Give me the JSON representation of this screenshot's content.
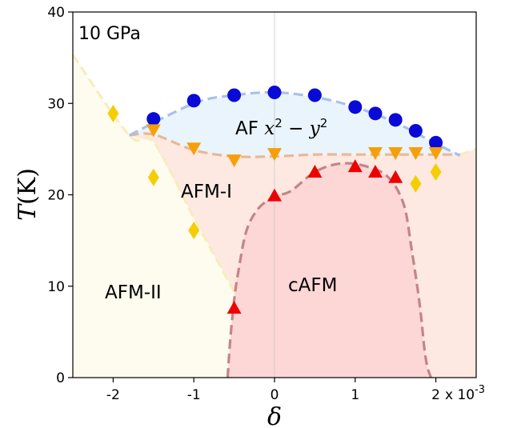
{
  "chart_data": {
    "type": "scatter",
    "panel_label": "10 GPa",
    "xlabel": "δ",
    "ylabel_main": "T",
    "ylabel_unit": "(K)",
    "x_multiplier_label": "x 10",
    "x_multiplier_exp": "-3",
    "xlim": [
      -2.5,
      2.5
    ],
    "ylim": [
      0,
      40
    ],
    "xticks": [
      -2,
      -1,
      0,
      1,
      2
    ],
    "yticks": [
      0,
      10,
      20,
      30,
      40
    ],
    "xtick_labels": [
      "-2",
      "-1",
      "0",
      "1",
      "2"
    ],
    "ytick_labels": [
      "0",
      "10",
      "20",
      "30",
      "40"
    ],
    "vertical_reference_line_x": 0,
    "regions": {
      "afx2y2": {
        "label_prefix": "AF",
        "label_math": "x",
        "label_minus": " − ",
        "label_math2": "y",
        "exp": "2"
      },
      "afm1": {
        "label": "AFM-I"
      },
      "afm2": {
        "label": "AFM-II"
      },
      "cafm": {
        "label": "cAFM"
      }
    },
    "colors": {
      "blue_marker": "#0a0ad6",
      "orange_marker": "#f5a00a",
      "red_marker": "#ee0000",
      "yellow_marker": "#f5cd05",
      "afx2y2_fill": "#eaf4fc",
      "afm1_fill": "#fde9e2",
      "afm2_fill": "#fefcee",
      "cafm_fill": "#fdd6d6",
      "blue_line": "#a8bff0",
      "orange_line": "#e8b893",
      "red_line": "#c38585",
      "yellow_line": "#f5eebc"
    },
    "series": [
      {
        "marker": "circle",
        "color": "blue",
        "x": [
          -1.5,
          -1.0,
          -0.5,
          0.0,
          0.5,
          1.0,
          1.25,
          1.5,
          1.75,
          2.0
        ],
        "y": [
          28.3,
          30.3,
          30.9,
          31.2,
          30.9,
          29.6,
          28.9,
          28.2,
          27.0,
          25.7
        ]
      },
      {
        "marker": "triangle-down",
        "color": "orange",
        "x": [
          -1.5,
          -1.0,
          -0.5,
          0.0,
          1.25,
          1.5,
          1.75,
          2.0
        ],
        "y": [
          27.1,
          25.1,
          23.8,
          24.5,
          24.6,
          24.6,
          24.6,
          24.6
        ]
      },
      {
        "marker": "triangle-up",
        "color": "red",
        "x": [
          -0.5,
          0.0,
          0.5,
          1.0,
          1.25,
          1.5
        ],
        "y": [
          7.6,
          19.9,
          22.5,
          23.1,
          22.5,
          21.9
        ]
      },
      {
        "marker": "diamond",
        "color": "yellow",
        "x": [
          -2.0,
          -1.5,
          -1.0,
          1.75,
          2.0
        ],
        "y": [
          28.9,
          21.9,
          16.1,
          21.2,
          22.5
        ]
      }
    ],
    "boundaries": {
      "afx2y2_upper": {
        "x": [
          -1.8,
          -1.0,
          -0.5,
          0.0,
          0.5,
          1.0,
          1.5,
          2.0,
          2.3
        ],
        "y": [
          26.5,
          30.0,
          30.9,
          31.2,
          30.7,
          29.6,
          27.9,
          25.6,
          24.3
        ]
      },
      "afm1_upper": {
        "x": [
          -1.8,
          -1.5,
          -1.0,
          -0.5,
          0.0,
          0.5,
          1.0,
          1.5,
          2.0,
          2.3
        ],
        "y": [
          26.5,
          26.6,
          24.9,
          24.2,
          24.2,
          24.4,
          24.4,
          24.4,
          24.4,
          24.4
        ]
      },
      "afm1_afm2_left": {
        "x": [
          -2.5,
          -1.8,
          -1.5,
          -1.0,
          -0.5
        ],
        "y": [
          35.3,
          26.5,
          25.8,
          17.5,
          9.4
        ]
      },
      "afm1_afm2_right": {
        "x": [
          2.3,
          2.5
        ],
        "y": [
          24.4,
          25.0
        ]
      },
      "cafm": {
        "x": [
          -0.58,
          -0.55,
          -0.5,
          -0.45,
          -0.35,
          -0.2,
          0.0,
          0.2,
          0.5,
          0.8,
          1.1,
          1.4,
          1.6,
          1.7,
          1.8,
          1.86,
          1.9,
          1.94
        ],
        "y": [
          0,
          4.0,
          8.5,
          11.5,
          16.0,
          18.5,
          19.8,
          20.4,
          22.5,
          23.4,
          23.2,
          22.0,
          19.0,
          14.0,
          8.0,
          3.0,
          1.0,
          0
        ]
      }
    }
  }
}
